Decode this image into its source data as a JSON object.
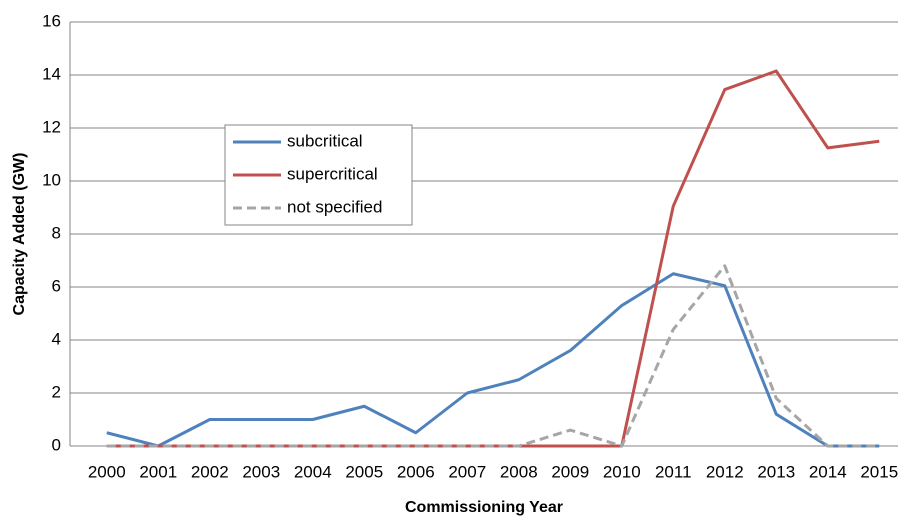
{
  "chart_data": {
    "type": "line",
    "x_label": "Commissioning Year",
    "y_label": "Capacity Added (GW)",
    "categories": [
      "2000",
      "2001",
      "2002",
      "2003",
      "2004",
      "2005",
      "2006",
      "2007",
      "2008",
      "2009",
      "2010",
      "2011",
      "2012",
      "2013",
      "2014",
      "2015"
    ],
    "series": [
      {
        "name": "subcritical",
        "color": "#4f81bd",
        "values": [
          0.5,
          0,
          1,
          1,
          1,
          1.5,
          0.5,
          2,
          2.5,
          3.6,
          5.3,
          6.5,
          6.05,
          1.2,
          0,
          0
        ]
      },
      {
        "name": "supercritical",
        "color": "#c0504d",
        "values": [
          0,
          0,
          0,
          0,
          0,
          0,
          0,
          0,
          0,
          0,
          0,
          9.05,
          13.45,
          14.15,
          11.25,
          11.5
        ]
      },
      {
        "name": "not specified",
        "color": "#a6a6a6",
        "dashed": true,
        "values": [
          0,
          0,
          0,
          0,
          0,
          0,
          0,
          0,
          0,
          0.6,
          0,
          4.4,
          6.8,
          1.8,
          0,
          0
        ]
      }
    ],
    "ylim": [
      0,
      16
    ],
    "yticks": [
      0,
      2,
      4,
      6,
      8,
      10,
      12,
      14,
      16
    ],
    "grid": true
  }
}
